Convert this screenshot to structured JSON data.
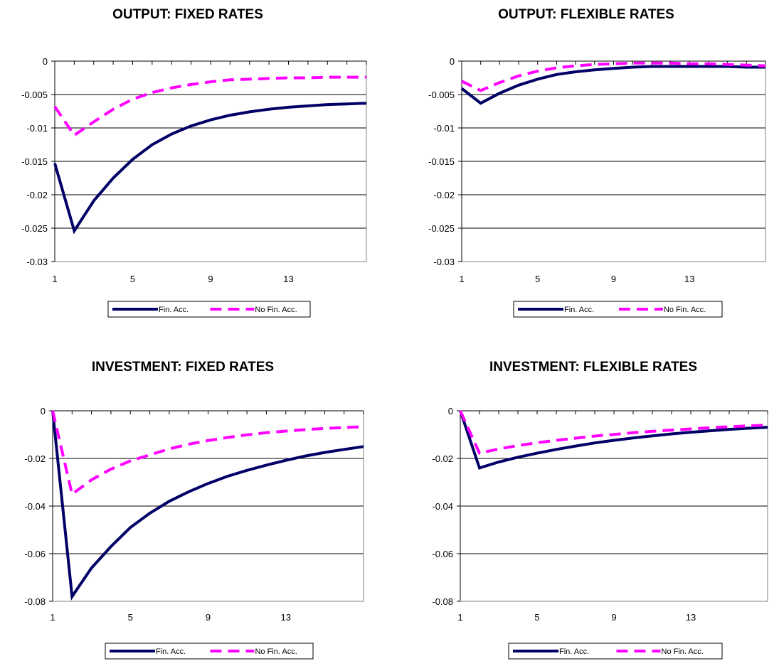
{
  "colors": {
    "fin_acc": "#000066",
    "no_fin_acc": "#FF00FF",
    "gridline": "#000000",
    "plot_border": "#808080",
    "background": "#FFFFFF"
  },
  "chart_data": [
    {
      "type": "line",
      "title": "OUTPUT: FIXED RATES",
      "xlabel": "",
      "ylabel": "",
      "x": [
        1,
        2,
        3,
        4,
        5,
        6,
        7,
        8,
        9,
        10,
        11,
        12,
        13,
        14,
        15,
        16,
        17
      ],
      "x_tick_labels": [
        "1",
        "5",
        "9",
        "13"
      ],
      "ylim": [
        -0.03,
        0
      ],
      "y_tick_labels": [
        "0",
        "-0.005",
        "-0.01",
        "-0.015",
        "-0.02",
        "-0.025",
        "-0.03"
      ],
      "grid": true,
      "legend_position": "bottom",
      "series": [
        {
          "name": "Fin. Acc.",
          "style": "solid",
          "values": [
            -0.0153,
            -0.0254,
            -0.0209,
            -0.0175,
            -0.0147,
            -0.0125,
            -0.0109,
            -0.0097,
            -0.0088,
            -0.0081,
            -0.0076,
            -0.0072,
            -0.0069,
            -0.0067,
            -0.0065,
            -0.0064,
            -0.0063
          ]
        },
        {
          "name": "No Fin. Acc.",
          "style": "dashed",
          "values": [
            -0.0068,
            -0.0111,
            -0.0091,
            -0.0072,
            -0.0057,
            -0.0047,
            -0.004,
            -0.0035,
            -0.0031,
            -0.0028,
            -0.0027,
            -0.0026,
            -0.0025,
            -0.0025,
            -0.0024,
            -0.0024,
            -0.0024
          ]
        }
      ]
    },
    {
      "type": "line",
      "title": "OUTPUT: FLEXIBLE RATES",
      "xlabel": "",
      "ylabel": "",
      "x": [
        1,
        2,
        3,
        4,
        5,
        6,
        7,
        8,
        9,
        10,
        11,
        12,
        13,
        14,
        15,
        16,
        17
      ],
      "x_tick_labels": [
        "1",
        "5",
        "9",
        "13"
      ],
      "ylim": [
        -0.03,
        0
      ],
      "y_tick_labels": [
        "0",
        "-0.005",
        "-0.01",
        "-0.015",
        "-0.02",
        "-0.025",
        "-0.03"
      ],
      "grid": true,
      "legend_position": "bottom",
      "series": [
        {
          "name": "Fin. Acc.",
          "style": "solid",
          "values": [
            -0.0041,
            -0.0063,
            -0.0048,
            -0.0036,
            -0.0027,
            -0.002,
            -0.0016,
            -0.0013,
            -0.0011,
            -0.0009,
            -0.0008,
            -0.0008,
            -0.0008,
            -0.0008,
            -0.0008,
            -0.0009,
            -0.0009
          ]
        },
        {
          "name": "No Fin. Acc.",
          "style": "dashed",
          "values": [
            -0.003,
            -0.0044,
            -0.0032,
            -0.0022,
            -0.0015,
            -0.001,
            -0.0007,
            -0.0005,
            -0.0004,
            -0.0003,
            -0.0003,
            -0.0003,
            -0.0004,
            -0.0004,
            -0.0005,
            -0.0006,
            -0.0007
          ]
        }
      ]
    },
    {
      "type": "line",
      "title": "INVESTMENT: FIXED RATES",
      "xlabel": "",
      "ylabel": "",
      "x": [
        1,
        2,
        3,
        4,
        5,
        6,
        7,
        8,
        9,
        10,
        11,
        12,
        13,
        14,
        15,
        16,
        17
      ],
      "x_tick_labels": [
        "1",
        "5",
        "9",
        "13"
      ],
      "ylim": [
        -0.08,
        0
      ],
      "y_tick_labels": [
        "0",
        "-0.02",
        "-0.04",
        "-0.06",
        "-0.08"
      ],
      "grid": true,
      "legend_position": "bottom",
      "series": [
        {
          "name": "Fin. Acc.",
          "style": "solid",
          "values": [
            0,
            -0.078,
            -0.066,
            -0.057,
            -0.049,
            -0.043,
            -0.038,
            -0.034,
            -0.0305,
            -0.0275,
            -0.025,
            -0.0228,
            -0.0208,
            -0.019,
            -0.0175,
            -0.0162,
            -0.015
          ]
        },
        {
          "name": "No Fin. Acc.",
          "style": "dashed",
          "values": [
            0,
            -0.035,
            -0.029,
            -0.0245,
            -0.021,
            -0.0185,
            -0.016,
            -0.014,
            -0.0125,
            -0.0112,
            -0.0101,
            -0.0092,
            -0.0085,
            -0.0079,
            -0.0074,
            -0.007,
            -0.0067
          ]
        }
      ]
    },
    {
      "type": "line",
      "title": "INVESTMENT: FLEXIBLE RATES",
      "xlabel": "",
      "ylabel": "",
      "x": [
        1,
        2,
        3,
        4,
        5,
        6,
        7,
        8,
        9,
        10,
        11,
        12,
        13,
        14,
        15,
        16,
        17
      ],
      "x_tick_labels": [
        "1",
        "5",
        "9",
        "13"
      ],
      "ylim": [
        -0.08,
        0
      ],
      "y_tick_labels": [
        "0",
        "-0.02",
        "-0.04",
        "-0.06",
        "-0.08"
      ],
      "grid": true,
      "legend_position": "bottom",
      "series": [
        {
          "name": "Fin. Acc.",
          "style": "solid",
          "values": [
            0,
            -0.024,
            -0.0215,
            -0.0195,
            -0.0178,
            -0.0162,
            -0.0148,
            -0.0135,
            -0.0124,
            -0.0114,
            -0.0105,
            -0.0097,
            -0.009,
            -0.0084,
            -0.0078,
            -0.0073,
            -0.0069
          ]
        },
        {
          "name": "No Fin. Acc.",
          "style": "dashed",
          "values": [
            0,
            -0.0178,
            -0.016,
            -0.0146,
            -0.0134,
            -0.0124,
            -0.0115,
            -0.0106,
            -0.0099,
            -0.0092,
            -0.0086,
            -0.0081,
            -0.0076,
            -0.0071,
            -0.0067,
            -0.0063,
            -0.006
          ]
        }
      ]
    }
  ]
}
